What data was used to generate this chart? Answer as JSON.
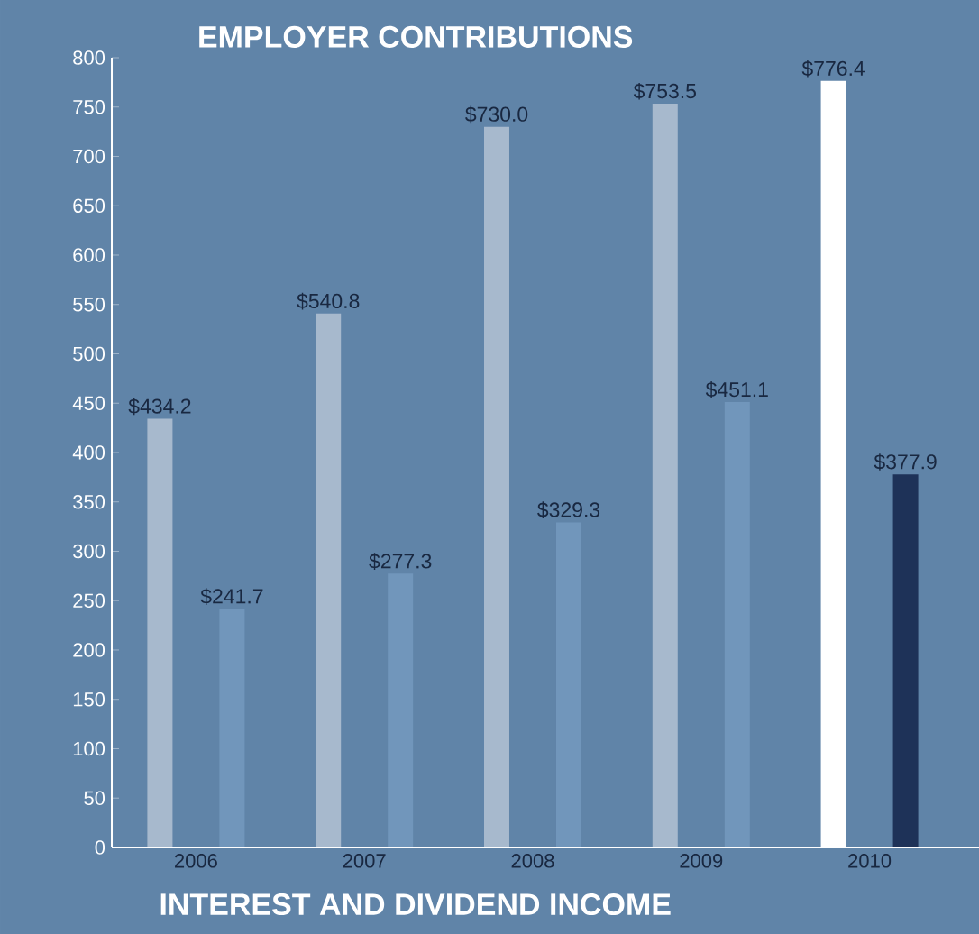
{
  "chart_data": {
    "type": "bar",
    "title": "EMPLOYER CONTRIBUTIONS",
    "xlabel": "INTEREST AND DIVIDEND INCOME",
    "categories": [
      "2006",
      "2007",
      "2008",
      "2009",
      "2010"
    ],
    "series": [
      {
        "colors": [
          "#a7b9cd",
          "#a7b9cd",
          "#a7b9cd",
          "#a7b9cd",
          "#ffffff"
        ],
        "values": [
          434.2,
          540.8,
          730.0,
          753.5,
          776.4
        ],
        "value_labels": [
          "$434.2",
          "$540.8",
          "$730.0",
          "$753.5",
          "$776.4"
        ]
      },
      {
        "colors": [
          "#7196bb",
          "#7196bb",
          "#7196bb",
          "#7196bb",
          "#1e3258"
        ],
        "values": [
          241.7,
          277.3,
          329.3,
          451.1,
          377.9
        ],
        "value_labels": [
          "$241.7",
          "$277.3",
          "$329.3",
          "$451.1",
          "$377.9"
        ]
      }
    ],
    "ylim": [
      0,
      800
    ],
    "yticks": [
      0,
      50,
      100,
      150,
      200,
      250,
      300,
      350,
      400,
      450,
      500,
      550,
      600,
      650,
      700,
      750,
      800
    ]
  }
}
